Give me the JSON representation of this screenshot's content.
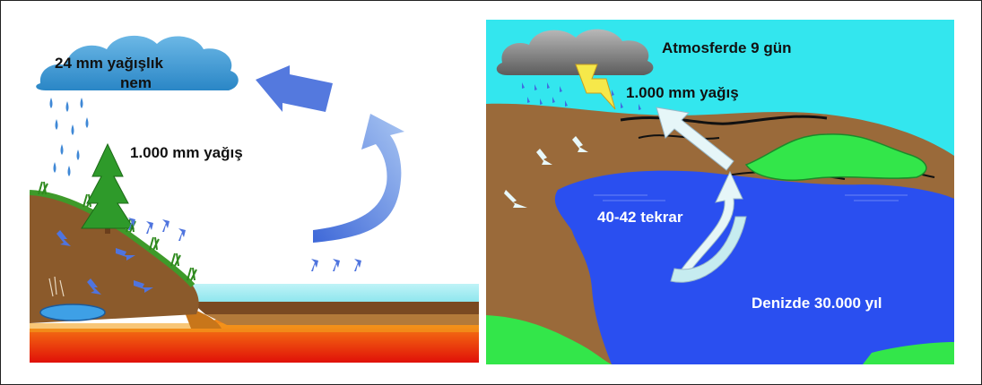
{
  "left_panel": {
    "cloud_label_line1": "24 mm yağışlık",
    "cloud_label_line2": "nem",
    "rain_label": "1.000 mm yağış"
  },
  "right_panel": {
    "atmosphere_label": "Atmosferde 9 gün",
    "rain_label": "1.000 mm yağış",
    "cycles_label": "40-42 tekrar",
    "sea_label": "Denizde 30.000 yıl"
  },
  "colors": {
    "sky_right": "#33e6ee",
    "sea": "#2a4ff0",
    "land_brown": "#9a6a3a",
    "grass_green": "#33e64a",
    "arrow_blue": "#5a7fe0",
    "arrow_light": "#dff4f6"
  }
}
